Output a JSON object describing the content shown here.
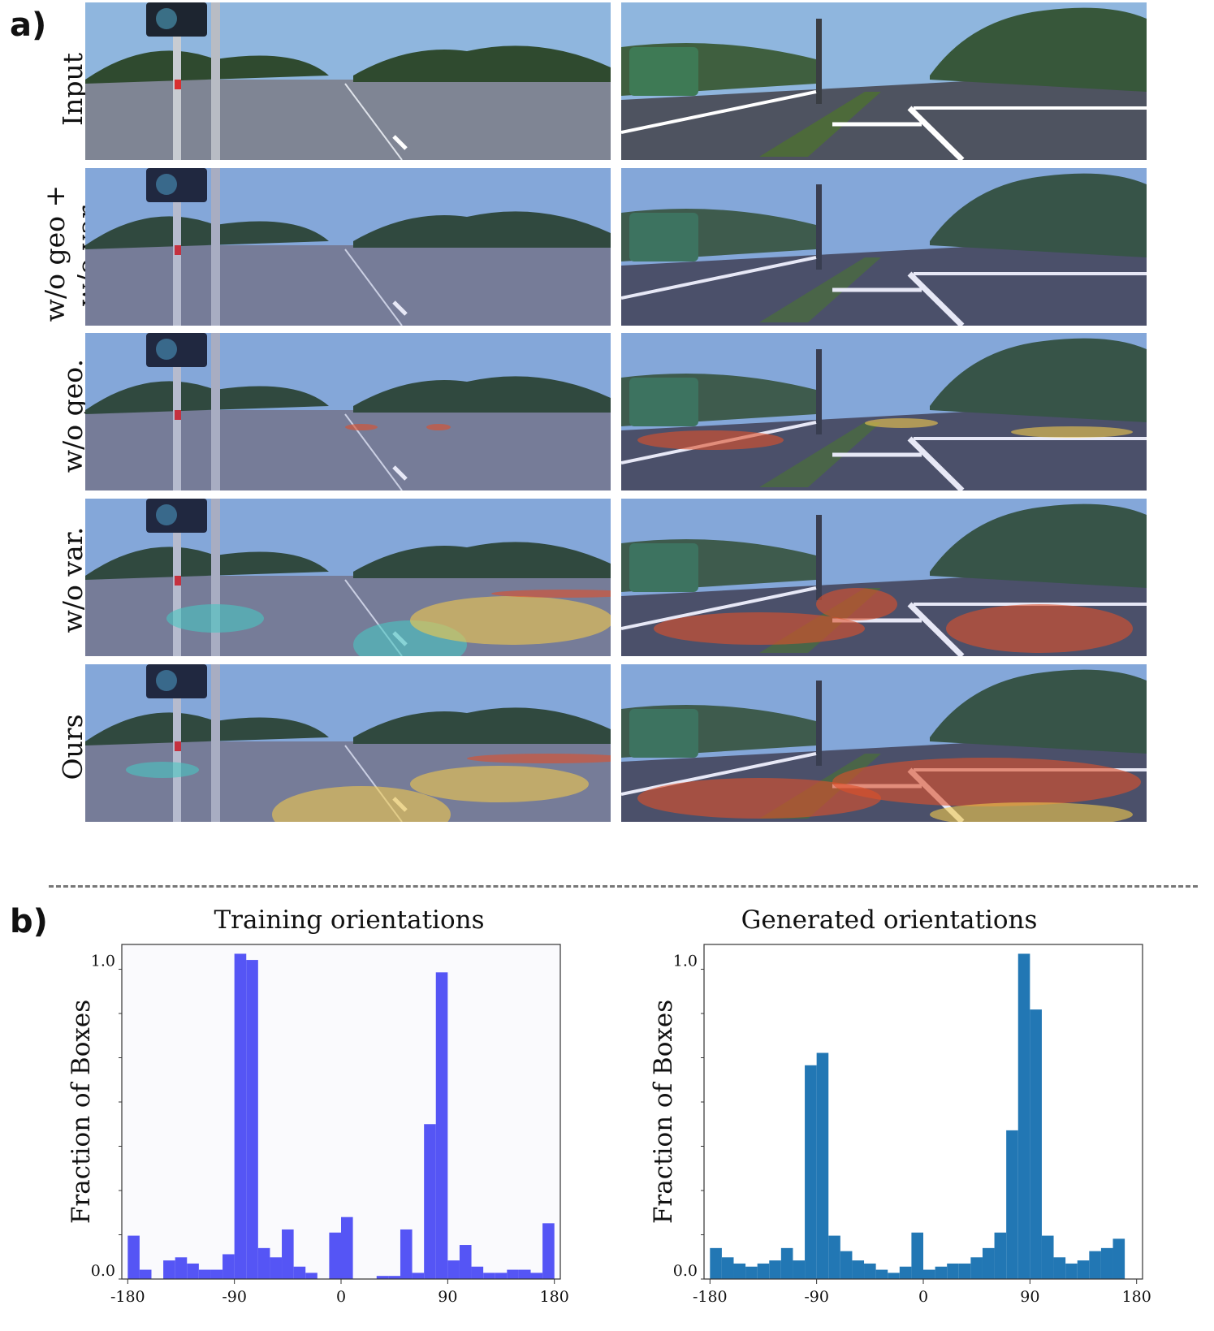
{
  "panels": {
    "a": "a)",
    "b": "b)"
  },
  "rows": [
    {
      "id": "input",
      "label": "Input"
    },
    {
      "id": "wo-geo-var",
      "label": "w/o geo + w/o var."
    },
    {
      "id": "wo-geo",
      "label": "w/o geo."
    },
    {
      "id": "wo-var",
      "label": "w/o var."
    },
    {
      "id": "ours",
      "label": "Ours"
    }
  ],
  "row_label_lines": {
    "input": [
      "Input"
    ],
    "wo-geo-var": [
      "w/o geo +",
      "w/o var."
    ],
    "wo-geo": [
      "w/o geo."
    ],
    "wo-var": [
      "w/o var."
    ],
    "ours": [
      "Ours"
    ]
  },
  "scene_colors": {
    "sky": "#8fb6de",
    "road": "#7f8594",
    "trees": "#2f4a2f",
    "heat_low": "#49c6c2",
    "heat_mid": "#f2c94c",
    "heat_high": "#e0502a"
  },
  "chart_data": [
    {
      "type": "bar",
      "title": "Training orientations",
      "ylabel": "Fraction of Boxes",
      "color": "#5555f5",
      "xlim": [
        -185,
        185
      ],
      "ylim": [
        0,
        1.08
      ],
      "xticks": [
        "-180",
        "-90",
        "0",
        "90",
        "180"
      ],
      "xtick_values": [
        -180,
        -90,
        0,
        90,
        180
      ],
      "yticks": [
        "0.0",
        "1.0"
      ],
      "ytick_values": [
        0.0,
        1.0
      ],
      "bin_width": 10,
      "bin_starts": [
        -180,
        -170,
        -160,
        -150,
        -140,
        -130,
        -120,
        -110,
        -100,
        -90,
        -80,
        -70,
        -60,
        -50,
        -40,
        -30,
        -20,
        -10,
        0,
        10,
        20,
        30,
        40,
        50,
        60,
        70,
        80,
        90,
        100,
        110,
        120,
        130,
        140,
        150,
        160,
        170,
        180
      ],
      "values": [
        0.14,
        0.03,
        0.0,
        0.06,
        0.07,
        0.05,
        0.03,
        0.03,
        0.08,
        1.05,
        1.03,
        0.1,
        0.07,
        0.16,
        0.04,
        0.02,
        0.0,
        0.15,
        0.2,
        0.0,
        0.0,
        0.01,
        0.01,
        0.16,
        0.02,
        0.5,
        0.99,
        0.06,
        0.11,
        0.04,
        0.02,
        0.02,
        0.03,
        0.03,
        0.02,
        0.18,
        0.0
      ]
    },
    {
      "type": "bar",
      "title": "Generated orientations",
      "ylabel": "Fraction of Boxes",
      "color": "#2277b4",
      "xlim": [
        -185,
        185
      ],
      "ylim": [
        0,
        1.08
      ],
      "xticks": [
        "-180",
        "-90",
        "0",
        "90",
        "180"
      ],
      "xtick_values": [
        -180,
        -90,
        0,
        90,
        180
      ],
      "yticks": [
        "0.0",
        "1.0"
      ],
      "ytick_values": [
        0.0,
        1.0
      ],
      "bin_width": 10,
      "bin_starts": [
        -180,
        -170,
        -160,
        -150,
        -140,
        -130,
        -120,
        -110,
        -100,
        -90,
        -80,
        -70,
        -60,
        -50,
        -40,
        -30,
        -20,
        -10,
        0,
        10,
        20,
        30,
        40,
        50,
        60,
        70,
        80,
        90,
        100,
        110,
        120,
        130,
        140,
        150,
        160,
        170,
        180
      ],
      "values": [
        0.1,
        0.07,
        0.05,
        0.04,
        0.05,
        0.06,
        0.1,
        0.06,
        0.69,
        0.73,
        0.14,
        0.09,
        0.06,
        0.05,
        0.03,
        0.02,
        0.04,
        0.15,
        0.03,
        0.04,
        0.05,
        0.05,
        0.07,
        0.1,
        0.15,
        0.48,
        1.05,
        0.87,
        0.14,
        0.07,
        0.05,
        0.06,
        0.09,
        0.1,
        0.13,
        0.0,
        0.0
      ]
    }
  ]
}
